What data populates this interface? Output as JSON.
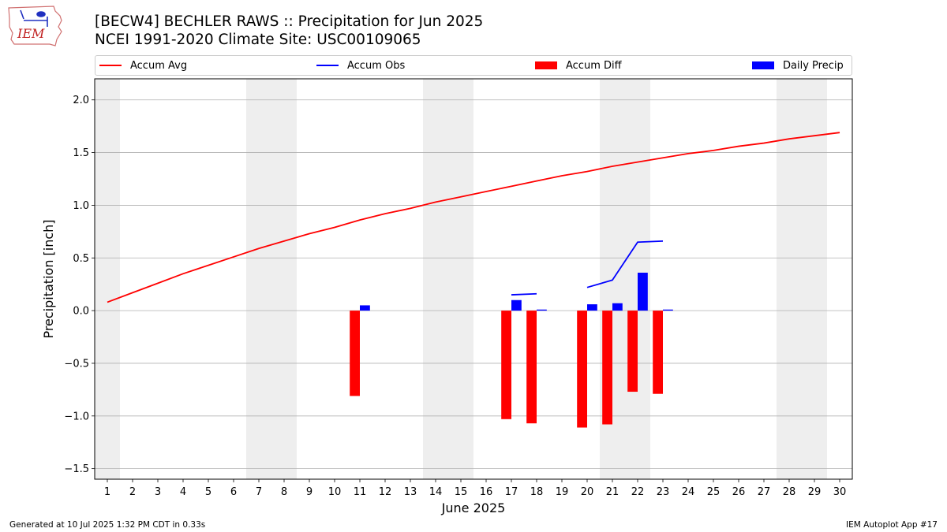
{
  "header": {
    "title_line1": "[BECW4] BECHLER RAWS :: Precipitation for Jun 2025",
    "title_line2": "NCEI 1991-2020 Climate Site: USC00109065",
    "logo_text": "IEM"
  },
  "legend": [
    {
      "label": "Accum Avg",
      "kind": "line",
      "color": "#ff0000"
    },
    {
      "label": "Accum Obs",
      "kind": "line",
      "color": "#0000ff"
    },
    {
      "label": "Accum Diff",
      "kind": "box",
      "color": "#ff0000"
    },
    {
      "label": "Daily Precip",
      "kind": "box",
      "color": "#0000ff"
    }
  ],
  "footer": {
    "left": "Generated at 10 Jul 2025 1:32 PM CDT in 0.33s",
    "right": "IEM Autoplot App #17"
  },
  "colors": {
    "avg": "#ff0000",
    "obs": "#0000ff",
    "diff": "#ff0000",
    "daily": "#0000ff",
    "weekend_shade": "#eeeeee",
    "grid": "#b0b0b0"
  },
  "chart_data": {
    "type": "bar",
    "title": "[BECW4] BECHLER RAWS :: Precipitation for Jun 2025",
    "subtitle": "NCEI 1991-2020 Climate Site: USC00109065",
    "xlabel": "June 2025",
    "ylabel": "Precipitation [inch]",
    "xlim": [
      0.5,
      30.5
    ],
    "ylim": [
      -1.6,
      2.2
    ],
    "yticks": [
      -1.5,
      -1.0,
      -0.5,
      0.0,
      0.5,
      1.0,
      1.5,
      2.0
    ],
    "ytick_labels": [
      "−1.5",
      "−1.0",
      "−0.5",
      "0.0",
      "0.5",
      "1.0",
      "1.5",
      "2.0"
    ],
    "days": [
      1,
      2,
      3,
      4,
      5,
      6,
      7,
      8,
      9,
      10,
      11,
      12,
      13,
      14,
      15,
      16,
      17,
      18,
      19,
      20,
      21,
      22,
      23,
      24,
      25,
      26,
      27,
      28,
      29,
      30
    ],
    "weekend_days": [
      1,
      7,
      8,
      14,
      15,
      21,
      22,
      28,
      29
    ],
    "grid": "y",
    "legend_position": "top",
    "series": [
      {
        "name": "Accum Avg",
        "kind": "line",
        "values": [
          0.08,
          0.17,
          0.26,
          0.35,
          0.43,
          0.51,
          0.59,
          0.66,
          0.73,
          0.79,
          0.86,
          0.92,
          0.97,
          1.03,
          1.08,
          1.13,
          1.18,
          1.23,
          1.28,
          1.32,
          1.37,
          1.41,
          1.45,
          1.49,
          1.52,
          1.56,
          1.59,
          1.63,
          1.66,
          1.69
        ]
      },
      {
        "name": "Accum Obs",
        "kind": "line",
        "segments": [
          {
            "x": [
              17,
              18
            ],
            "y": [
              0.15,
              0.16
            ]
          },
          {
            "x": [
              20,
              21,
              22,
              23
            ],
            "y": [
              0.22,
              0.29,
              0.65,
              0.66
            ]
          }
        ]
      },
      {
        "name": "Accum Diff",
        "kind": "bar",
        "x": [
          11,
          17,
          18,
          20,
          21,
          22,
          23
        ],
        "values": [
          -0.81,
          -1.03,
          -1.07,
          -1.11,
          -1.08,
          -0.77,
          -0.79
        ]
      },
      {
        "name": "Daily Precip",
        "kind": "bar",
        "x": [
          11,
          17,
          18,
          20,
          21,
          22,
          23
        ],
        "values": [
          0.05,
          0.1,
          0.01,
          0.06,
          0.07,
          0.36,
          0.01
        ]
      }
    ]
  }
}
